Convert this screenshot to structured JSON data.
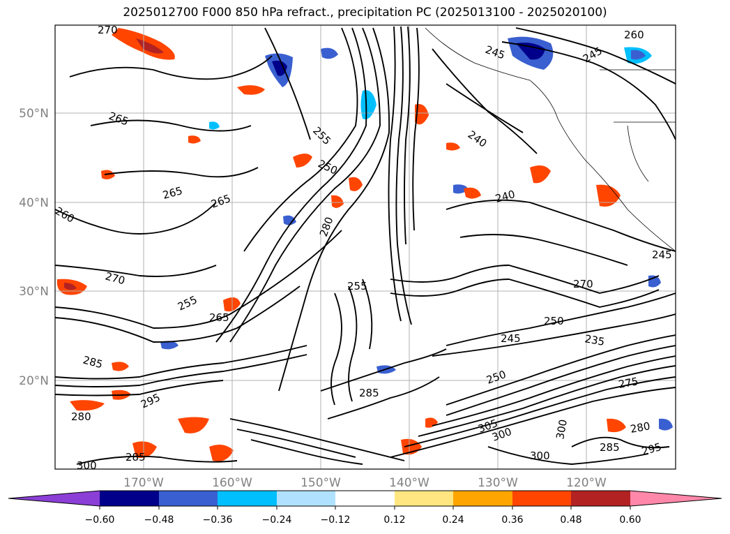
{
  "title": "2025012700 F000 850 hPa refract., precipitation PC (2025013100 - 2025020100)",
  "map": {
    "lat_labels": [
      "50°N",
      "40°N",
      "30°N",
      "20°N"
    ],
    "lon_labels": [
      "170°W",
      "160°W",
      "150°W",
      "140°W",
      "130°W",
      "120°W"
    ],
    "contour_labels": [
      "270",
      "265",
      "255",
      "250",
      "245",
      "240",
      "265",
      "260",
      "265",
      "270",
      "240",
      "265",
      "280",
      "285",
      "255",
      "255",
      "250",
      "245",
      "235",
      "270",
      "250",
      "275",
      "285",
      "295",
      "300",
      "305",
      "300",
      "300",
      "280",
      "300",
      "280",
      "295",
      "285",
      "285",
      "245",
      "245",
      "260"
    ]
  },
  "colorbar": {
    "tick_labels": [
      "−0.60",
      "−0.48",
      "−0.36",
      "−0.24",
      "−0.12",
      "0.12",
      "0.24",
      "0.36",
      "0.48",
      "0.60"
    ],
    "colors": [
      "#8b3fd6",
      "#00008b",
      "#3a5fd0",
      "#00bfff",
      "#b0e2ff",
      "#ffffff",
      "#ffe680",
      "#ffa500",
      "#ff4500",
      "#b22222",
      "#ff88aa"
    ]
  }
}
